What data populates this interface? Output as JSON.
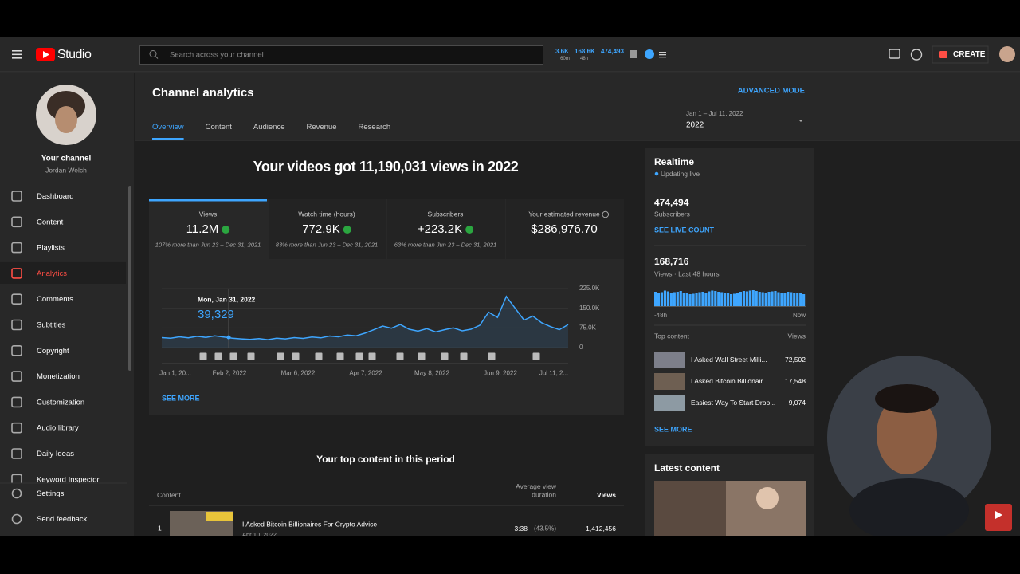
{
  "header": {
    "logo": "Studio",
    "search_placeholder": "Search across your channel",
    "stats": [
      {
        "value": "3.6K",
        "sub": "60m"
      },
      {
        "value": "168.6K",
        "sub": "48h"
      },
      {
        "value": "474,493"
      }
    ],
    "create": "CREATE"
  },
  "sidebar": {
    "channel_title": "Your channel",
    "channel_name": "Jordan Welch",
    "nav": [
      {
        "label": "Dashboard"
      },
      {
        "label": "Content"
      },
      {
        "label": "Playlists"
      },
      {
        "label": "Analytics",
        "active": true
      },
      {
        "label": "Comments"
      },
      {
        "label": "Subtitles"
      },
      {
        "label": "Copyright"
      },
      {
        "label": "Monetization"
      },
      {
        "label": "Customization"
      },
      {
        "label": "Audio library"
      },
      {
        "label": "Daily Ideas"
      },
      {
        "label": "Keyword Inspector"
      }
    ],
    "bottom_nav": [
      {
        "label": "Settings"
      },
      {
        "label": "Send feedback"
      }
    ]
  },
  "page": {
    "title": "Channel analytics",
    "advanced_mode": "ADVANCED MODE",
    "tabs": [
      {
        "label": "Overview",
        "active": true
      },
      {
        "label": "Content"
      },
      {
        "label": "Audience"
      },
      {
        "label": "Revenue"
      },
      {
        "label": "Research"
      }
    ],
    "date_range": "Jan 1 – Jul 11, 2022",
    "date_preset": "2022"
  },
  "overview": {
    "headline": "Your videos got 11,190,031 views in 2022",
    "metrics": [
      {
        "label": "Views",
        "value": "11.2M",
        "note": "107% more than Jun 23 – Dec 31, 2021",
        "selected": true
      },
      {
        "label": "Watch time (hours)",
        "value": "772.9K",
        "note": "83% more than Jun 23 – Dec 31, 2021"
      },
      {
        "label": "Subscribers",
        "value": "+223.2K",
        "note": "63% more than Jun 23 – Dec 31, 2021"
      },
      {
        "label": "Your estimated revenue",
        "value": "$286,976.70"
      }
    ],
    "chart": {
      "type": "line",
      "color": "#3ea6ff",
      "values": [
        38000,
        36000,
        41000,
        37000,
        43000,
        39000,
        45000,
        40000,
        36000,
        33000,
        31000,
        34000,
        30000,
        36000,
        33000,
        38000,
        35000,
        40000,
        37000,
        44000,
        41000,
        48000,
        45000,
        55000,
        68000,
        82000,
        74000,
        88000,
        70000,
        63000,
        72000,
        60000,
        68000,
        75000,
        64000,
        70000,
        85000,
        135000,
        115000,
        195000,
        150000,
        105000,
        120000,
        95000,
        80000,
        68000,
        88000
      ],
      "ylim": [
        0,
        225000
      ],
      "yticks": [
        0,
        {
          "value": 75000,
          "label": "75.0K"
        },
        {
          "value": 150000,
          "label": "150.0K"
        },
        {
          "value": 225000,
          "label": "225.0K"
        }
      ],
      "x_labels": [
        "Jan 1, 20...",
        "Feb 2, 2022",
        "Mar 6, 2022",
        "Apr 7, 2022",
        "May 8, 2022",
        "Jun 9, 2022",
        "Jul 11, 2..."
      ],
      "tooltip": {
        "date": "Mon, Jan 31, 2022",
        "value": "39,329"
      }
    },
    "see_more": "SEE MORE"
  },
  "top_content": {
    "title": "Your top content in this period",
    "columns": [
      "Content",
      "Average view duration",
      "Views"
    ],
    "rows": [
      {
        "rank": "1",
        "title": "I Asked Bitcoin Billionaires For Crypto Advice",
        "date": "Apr 10, 2022",
        "duration": "3:38",
        "percent": "(43.5%)",
        "views": "1,412,456"
      }
    ]
  },
  "realtime": {
    "title": "Realtime",
    "status": "Updating live",
    "subscribers": "474,494",
    "subscribers_label": "Subscribers",
    "live_count": "SEE LIVE COUNT",
    "views": "168,716",
    "views_label": "Views · Last 48 hours",
    "bars": {
      "color": "#3ea6ff",
      "values": [
        3600,
        3400,
        3500,
        3900,
        3700,
        3300,
        3500,
        3600,
        3800,
        3400,
        3200,
        3000,
        3100,
        3300,
        3500,
        3600,
        3400,
        3700,
        3900,
        3800,
        3600,
        3500,
        3300,
        3200,
        3000,
        3100,
        3400,
        3600,
        3800,
        3700,
        3900,
        4000,
        3800,
        3600,
        3500,
        3400,
        3600,
        3700,
        3800,
        3500,
        3300,
        3400,
        3600,
        3500,
        3300,
        3200,
        3400,
        3000
      ],
      "start_label": "-48h",
      "end_label": "Now"
    },
    "top_content_label": "Top content",
    "views_column": "Views",
    "items": [
      {
        "title": "I Asked Wall Street Milli...",
        "views": "72,502"
      },
      {
        "title": "I Asked Bitcoin Billionair...",
        "views": "17,548"
      },
      {
        "title": "Easiest Way To Start Drop...",
        "views": "9,074"
      }
    ],
    "see_more": "SEE MORE"
  },
  "latest_content": {
    "title": "Latest content"
  }
}
